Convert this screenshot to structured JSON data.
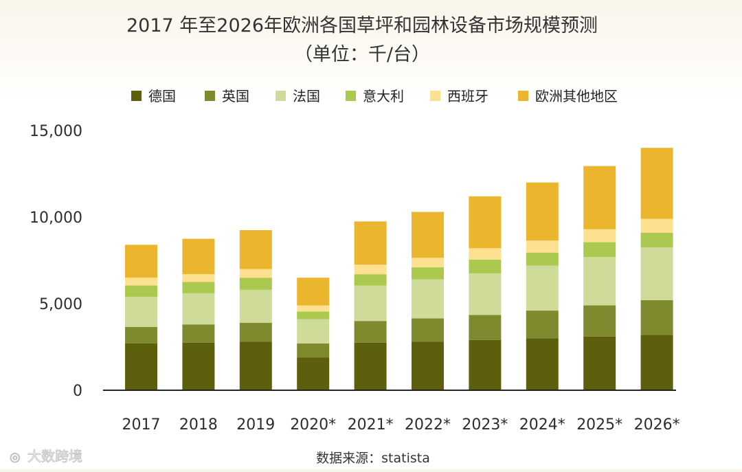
{
  "chart_data": {
    "type": "bar",
    "stacked": true,
    "title": "2017 年至2026年欧洲各国草坪和园林设备市场规模预测",
    "subtitle": "（单位：千/台）",
    "xlabel": "",
    "ylabel": "",
    "ylim": [
      0,
      15000
    ],
    "yticks": [
      0,
      5000,
      10000,
      15000
    ],
    "ytick_labels": [
      "0",
      "5,000",
      "10,000",
      "15,000"
    ],
    "grid": false,
    "legend_position": "top",
    "categories": [
      "2017",
      "2018",
      "2019",
      "2020*",
      "2021*",
      "2022*",
      "2023*",
      "2024*",
      "2025*",
      "2026*"
    ],
    "series": [
      {
        "name": "德国",
        "color": "#5e5f0c",
        "values": [
          2700,
          2750,
          2800,
          1900,
          2750,
          2800,
          2900,
          3000,
          3100,
          3200
        ]
      },
      {
        "name": "英国",
        "color": "#7f8a2e",
        "values": [
          950,
          1050,
          1100,
          800,
          1250,
          1350,
          1450,
          1600,
          1800,
          2000
        ]
      },
      {
        "name": "法国",
        "color": "#cfdb98",
        "values": [
          1750,
          1800,
          1900,
          1400,
          2050,
          2250,
          2400,
          2600,
          2800,
          3050
        ]
      },
      {
        "name": "意大利",
        "color": "#aac94e",
        "values": [
          650,
          650,
          700,
          450,
          650,
          700,
          800,
          750,
          850,
          850
        ]
      },
      {
        "name": "西班牙",
        "color": "#fde191",
        "values": [
          450,
          450,
          500,
          350,
          550,
          550,
          650,
          700,
          750,
          800
        ]
      },
      {
        "name": "欧洲其他地区",
        "color": "#ebb62d",
        "values": [
          1900,
          2050,
          2250,
          1600,
          2500,
          2650,
          3000,
          3350,
          3650,
          4100
        ]
      }
    ],
    "source": "数据来源：statista"
  },
  "watermark": "大数跨境"
}
